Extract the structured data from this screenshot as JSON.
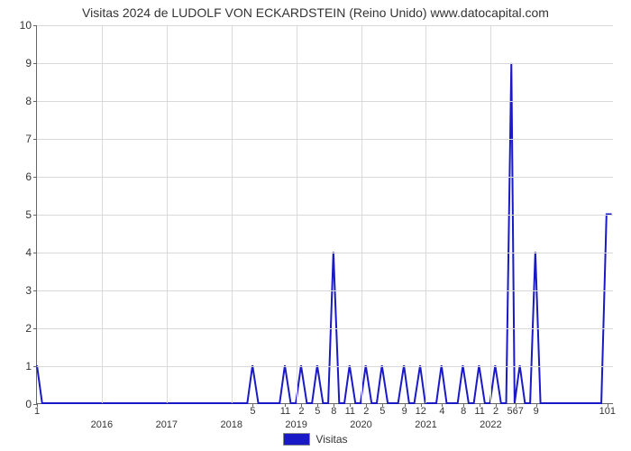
{
  "chart": {
    "type": "line",
    "title": "Visitas 2024 de LUDOLF VON ECKARDSTEIN (Reino Unido) www.datocapital.com",
    "title_fontsize": 14,
    "background_color": "#ffffff",
    "grid_color": "#d9d9d9",
    "axis_color": "#666666",
    "text_color": "#333333",
    "series_color": "#1919c5",
    "line_width": 2,
    "ylim": [
      0,
      10
    ],
    "ytick_step": 1,
    "xlim": [
      2015.0,
      2023.9
    ],
    "year_ticks": [
      2016,
      2017,
      2018,
      2019,
      2020,
      2021,
      2022
    ],
    "month_labels": [
      {
        "x": 2015.0,
        "label": "1"
      },
      {
        "x": 2018.33,
        "label": "5"
      },
      {
        "x": 2018.83,
        "label": "11"
      },
      {
        "x": 2019.08,
        "label": "2"
      },
      {
        "x": 2019.33,
        "label": "5"
      },
      {
        "x": 2019.58,
        "label": "8"
      },
      {
        "x": 2019.83,
        "label": "11"
      },
      {
        "x": 2020.08,
        "label": "2"
      },
      {
        "x": 2020.33,
        "label": "5"
      },
      {
        "x": 2020.67,
        "label": "9"
      },
      {
        "x": 2020.92,
        "label": "12"
      },
      {
        "x": 2021.25,
        "label": "4"
      },
      {
        "x": 2021.58,
        "label": "8"
      },
      {
        "x": 2021.83,
        "label": "11"
      },
      {
        "x": 2022.08,
        "label": "2"
      },
      {
        "x": 2022.38,
        "label": "567"
      },
      {
        "x": 2022.7,
        "label": "9"
      },
      {
        "x": 2023.8,
        "label": "101"
      }
    ],
    "x": [
      2015.0,
      2015.08,
      2018.25,
      2018.33,
      2018.42,
      2018.75,
      2018.83,
      2018.92,
      2019.0,
      2019.08,
      2019.17,
      2019.25,
      2019.33,
      2019.42,
      2019.5,
      2019.58,
      2019.67,
      2019.75,
      2019.83,
      2019.92,
      2020.0,
      2020.08,
      2020.17,
      2020.25,
      2020.33,
      2020.42,
      2020.58,
      2020.67,
      2020.75,
      2020.83,
      2020.92,
      2021.0,
      2021.17,
      2021.25,
      2021.33,
      2021.5,
      2021.58,
      2021.67,
      2021.75,
      2021.83,
      2021.92,
      2022.0,
      2022.08,
      2022.17,
      2022.25,
      2022.33,
      2022.38,
      2022.46,
      2022.54,
      2022.62,
      2022.7,
      2022.78,
      2023.72,
      2023.8,
      2023.88
    ],
    "y": [
      1,
      0,
      0,
      1,
      0,
      0,
      1,
      0,
      0,
      1,
      0,
      0,
      1,
      0,
      0,
      4,
      0,
      0,
      1,
      0,
      0,
      1,
      0,
      0,
      1,
      0,
      0,
      1,
      0,
      0,
      1,
      0,
      0,
      1,
      0,
      0,
      1,
      0,
      0,
      1,
      0,
      0,
      1,
      0,
      0,
      9,
      0,
      1,
      0,
      0,
      4,
      0,
      0,
      5,
      5
    ],
    "legend_label": "Visitas"
  }
}
